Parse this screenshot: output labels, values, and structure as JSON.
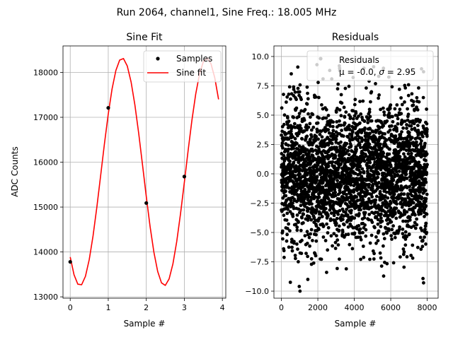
{
  "figure": {
    "suptitle": "Run 2064, channel1, Sine Freq.: 18.005 MHz"
  },
  "chart_data": [
    {
      "type": "line",
      "title": "Sine Fit",
      "xlabel": "Sample #",
      "ylabel": "ADC Counts",
      "xlim": [
        -0.19,
        4.09
      ],
      "ylim": [
        12970,
        18590
      ],
      "xticks": [
        0,
        1,
        2,
        3,
        4
      ],
      "yticks": [
        13000,
        14000,
        15000,
        16000,
        17000,
        18000
      ],
      "grid": true,
      "legend_placement": "upper right",
      "fit_model": {
        "offset": 15785,
        "amplitude": 2535,
        "cycles_per_sample": 0.4501,
        "phase_rad": 2.4175,
        "x_step": 0.1,
        "x_max": 3.9
      },
      "series": [
        {
          "name": "Samples",
          "kind": "scatter",
          "color": "#000000",
          "x": [
            0,
            1,
            2,
            3
          ],
          "y": [
            13780,
            17210,
            15090,
            15680
          ]
        },
        {
          "name": "Sine fit",
          "kind": "line",
          "color": "#ff0000"
        }
      ]
    },
    {
      "type": "scatter",
      "title": "Residuals",
      "xlabel": "Sample #",
      "xlim": [
        -410,
        8600
      ],
      "ylim": [
        -10.6,
        10.9
      ],
      "xticks": [
        0,
        2000,
        4000,
        6000,
        8000
      ],
      "yticks": [
        -10.0,
        -7.5,
        -5.0,
        -2.5,
        0.0,
        2.5,
        5.0,
        7.5,
        10.0
      ],
      "ytick_labels": [
        "−10.0",
        "−7.5",
        "−5.0",
        "−2.5",
        "0.0",
        "2.5",
        "5.0",
        "7.5",
        "10.0"
      ],
      "grid": true,
      "legend_placement": "upper right",
      "statistics": {
        "mean": -0.0,
        "sigma": 2.95,
        "n_samples": 8000
      },
      "series": [
        {
          "name": "Residuals",
          "kind": "scatter",
          "color": "#000000",
          "extreme_points": [
            [
              1020,
              -10.0
            ],
            [
              980,
              -9.6
            ],
            [
              1450,
              -9.0
            ],
            [
              2480,
              -8.4
            ],
            [
              3560,
              -8.1
            ],
            [
              1950,
              9.3
            ],
            [
              900,
              9.1
            ],
            [
              3200,
              8.8
            ],
            [
              5600,
              9.0
            ],
            [
              7800,
              8.7
            ]
          ]
        }
      ]
    }
  ],
  "legend": {
    "fit_samples_label": "Samples",
    "fit_line_label": "Sine fit",
    "residuals_label": "Residuals",
    "residuals_stats_prefix": "μ = -0.0, ",
    "residuals_stats_sigma_symbol": "σ",
    "residuals_stats_suffix": " = 2.95"
  }
}
